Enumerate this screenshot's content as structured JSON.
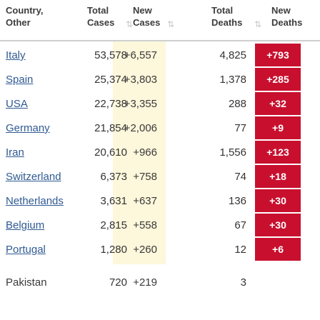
{
  "headers": {
    "country": [
      "Country,",
      "Other"
    ],
    "total_cases": [
      "Total",
      "Cases"
    ],
    "new_cases": [
      "New",
      "Cases"
    ],
    "total_deaths": [
      "Total",
      "Deaths"
    ],
    "new_deaths": [
      "New",
      "Deaths"
    ]
  },
  "rows": [
    {
      "country": "Italy",
      "total": "53,578",
      "new": "+6,557",
      "deaths": "4,825",
      "new_deaths": "+793"
    },
    {
      "country": "Spain",
      "total": "25,374",
      "new": "+3,803",
      "deaths": "1,378",
      "new_deaths": "+285"
    },
    {
      "country": "USA",
      "total": "22,738",
      "new": "+3,355",
      "deaths": "288",
      "new_deaths": "+32"
    },
    {
      "country": "Germany",
      "total": "21,854",
      "new": "+2,006",
      "deaths": "77",
      "new_deaths": "+9"
    },
    {
      "country": "Iran",
      "total": "20,610",
      "new": "+966",
      "deaths": "1,556",
      "new_deaths": "+123"
    },
    {
      "country": "Switzerland",
      "total": "6,373",
      "new": "+758",
      "deaths": "74",
      "new_deaths": "+18"
    },
    {
      "country": "Netherlands",
      "total": "3,631",
      "new": "+637",
      "deaths": "136",
      "new_deaths": "+30"
    },
    {
      "country": "Belgium",
      "total": "2,815",
      "new": "+558",
      "deaths": "67",
      "new_deaths": "+30"
    },
    {
      "country": "Portugal",
      "total": "1,280",
      "new": "+260",
      "deaths": "12",
      "new_deaths": "+6"
    },
    {
      "country": "Pakistan",
      "total": "720",
      "new": "+219",
      "deaths": "3",
      "new_deaths": ""
    }
  ],
  "icons": {
    "sort": "sort-arrows-icon"
  },
  "colors": {
    "link": "#2f5a93",
    "new_deaths_bg": "#c8102e",
    "new_cases_bg": "#fdf7db"
  }
}
